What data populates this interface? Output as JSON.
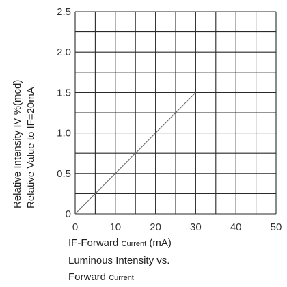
{
  "chart_data": {
    "type": "line",
    "title": "",
    "xlabel": "IF-Forward Current (mA)",
    "xlabel_parts": [
      "IF-Forward ",
      "Current",
      " (mA)"
    ],
    "ylabel_line1": "Relative Intensity IV         %(mcd)",
    "ylabel_line2": "Relative Value to IF=20mA",
    "caption_line1": "Luminous Intensity vs.",
    "caption_line2_parts": [
      "Forward ",
      "Current"
    ],
    "xlim": [
      0,
      50
    ],
    "ylim": [
      0,
      2.5
    ],
    "x_ticks": [
      0,
      10,
      20,
      30,
      40,
      50
    ],
    "x_tick_labels": [
      "0",
      "10",
      "20",
      "30",
      "40",
      "50"
    ],
    "y_ticks": [
      0,
      0.5,
      1.0,
      1.5,
      2.0,
      2.5
    ],
    "y_tick_labels": [
      "0",
      "0.5",
      "1.0",
      "1.5",
      "2.0",
      "2.5"
    ],
    "grid_x_step": 5,
    "grid_y_step": 0.25,
    "grid": true,
    "series": [
      {
        "x": [
          0,
          30
        ],
        "y": [
          0,
          1.5
        ],
        "color": "#6a6a6a"
      }
    ]
  }
}
